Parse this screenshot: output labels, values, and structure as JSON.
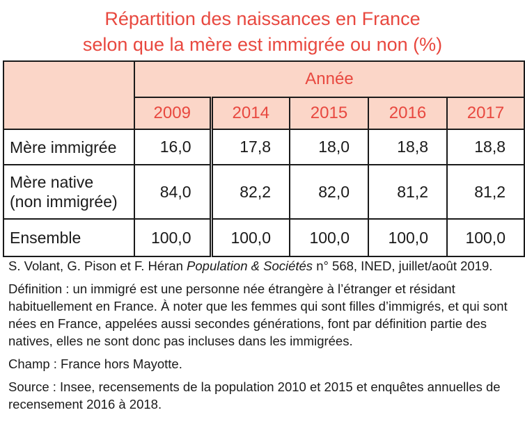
{
  "title": {
    "line1": "Répartition des naissances en France",
    "line2": "selon que la mère est immigrée ou non (%)"
  },
  "table": {
    "year_header": "Année",
    "years": [
      "2009",
      "2014",
      "2015",
      "2016",
      "2017"
    ],
    "rows": [
      {
        "label": "Mère immigrée",
        "values": [
          "16,0",
          "17,8",
          "18,0",
          "18,8",
          "18,8"
        ]
      },
      {
        "label_line1": "Mère native",
        "label_line2": "(non immigrée)",
        "values": [
          "84,0",
          "82,2",
          "82,0",
          "81,2",
          "81,2"
        ]
      },
      {
        "label": "Ensemble",
        "values": [
          "100,0",
          "100,0",
          "100,0",
          "100,0",
          "100,0"
        ]
      }
    ]
  },
  "notes": {
    "citation_prefix": "S. Volant, G. Pison et F. Héran ",
    "citation_journal": "Population & Sociétés",
    "citation_suffix": " n° 568, INED, juillet/août 2019.",
    "definition": "Définition : un immigré est une personne née étrangère à l’étranger et résidant habituellement en France. À noter que les femmes qui sont filles d’immigrés, et qui sont nées en France, appelées aussi secondes générations, font par définition partie des natives, elles ne sont donc pas incluses dans les immigrées.",
    "champ": "Champ : France hors Mayotte.",
    "source": "Source : Insee, recensements de la population 2010 et 2015 et enquêtes annuelles de recensement 2016 à 2018."
  }
}
